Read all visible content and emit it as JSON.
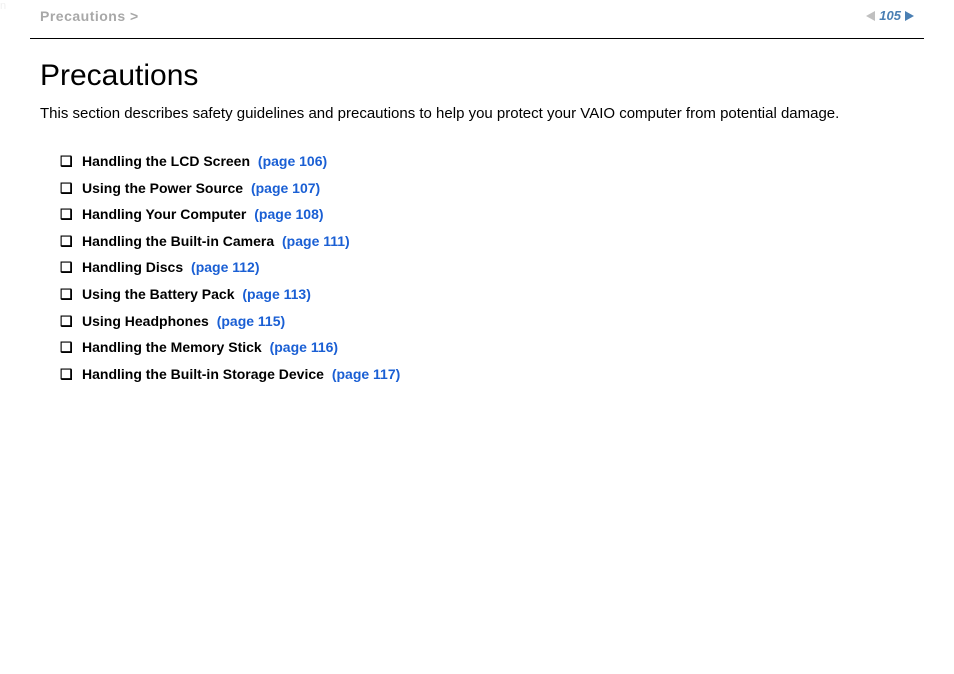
{
  "header": {
    "breadcrumb": "Precautions >",
    "page_number": "105",
    "nnn": "n"
  },
  "page": {
    "title": "Precautions",
    "intro": "This section describes safety guidelines and precautions to help you protect your VAIO computer from potential damage."
  },
  "toc": {
    "bullet": "❑",
    "items": [
      {
        "label": "Handling the LCD Screen",
        "page_ref": "(page 106)"
      },
      {
        "label": "Using the Power Source",
        "page_ref": "(page 107)"
      },
      {
        "label": "Handling Your Computer",
        "page_ref": "(page 108)"
      },
      {
        "label": "Handling the Built-in Camera",
        "page_ref": "(page 111)"
      },
      {
        "label": "Handling Discs",
        "page_ref": "(page 112)"
      },
      {
        "label": "Using the Battery Pack",
        "page_ref": "(page 113)"
      },
      {
        "label": "Using Headphones",
        "page_ref": "(page 115)"
      },
      {
        "label": "Handling the Memory Stick",
        "page_ref": "(page 116)"
      },
      {
        "label": "Handling the Built-in Storage Device",
        "page_ref": "(page 117)"
      }
    ]
  },
  "colors": {
    "link": "#1a5fd4",
    "breadcrumb": "#a8a8a8",
    "pagenum": "#4a7fb3",
    "text": "#000000",
    "background": "#ffffff"
  }
}
